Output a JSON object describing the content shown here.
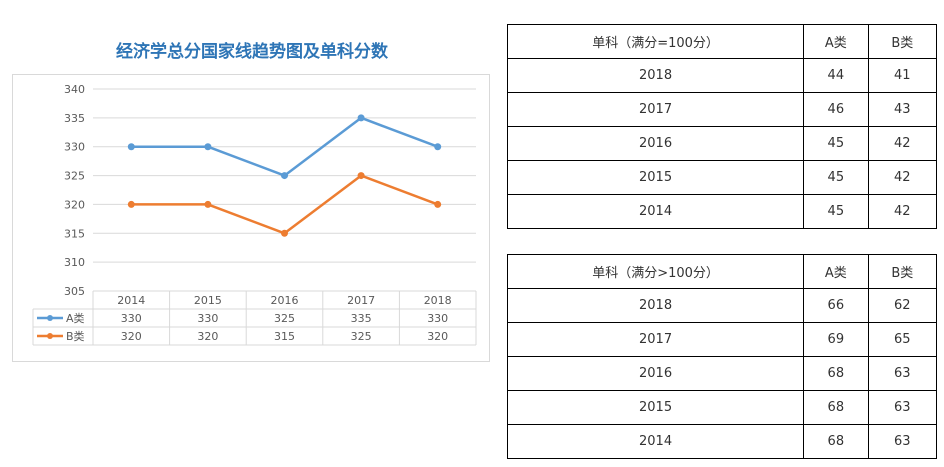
{
  "chart_data": {
    "type": "line",
    "title": "经济学总分国家线趋势图及单科分数",
    "categories": [
      "2014",
      "2015",
      "2016",
      "2017",
      "2018"
    ],
    "series": [
      {
        "name": "A类",
        "values": [
          330,
          330,
          325,
          335,
          330
        ],
        "color": "#5b9bd5"
      },
      {
        "name": "B类",
        "values": [
          320,
          320,
          315,
          325,
          320
        ],
        "color": "#ed7d31"
      }
    ],
    "ylim": [
      305,
      340
    ],
    "yticks": [
      "340",
      "335",
      "330",
      "325",
      "320",
      "315",
      "310",
      "305"
    ],
    "xlabel": "",
    "ylabel": "",
    "grid": true,
    "legend": "data-table"
  },
  "tables": [
    {
      "header": [
        "单科（满分=100分）",
        "A类",
        "B类"
      ],
      "rows": [
        [
          "2018",
          "44",
          "41"
        ],
        [
          "2017",
          "46",
          "43"
        ],
        [
          "2016",
          "45",
          "42"
        ],
        [
          "2015",
          "45",
          "42"
        ],
        [
          "2014",
          "45",
          "42"
        ]
      ]
    },
    {
      "header": [
        "单科（满分>100分）",
        "A类",
        "B类"
      ],
      "rows": [
        [
          "2018",
          "66",
          "62"
        ],
        [
          "2017",
          "69",
          "65"
        ],
        [
          "2016",
          "68",
          "63"
        ],
        [
          "2015",
          "68",
          "63"
        ],
        [
          "2014",
          "68",
          "63"
        ]
      ]
    }
  ]
}
